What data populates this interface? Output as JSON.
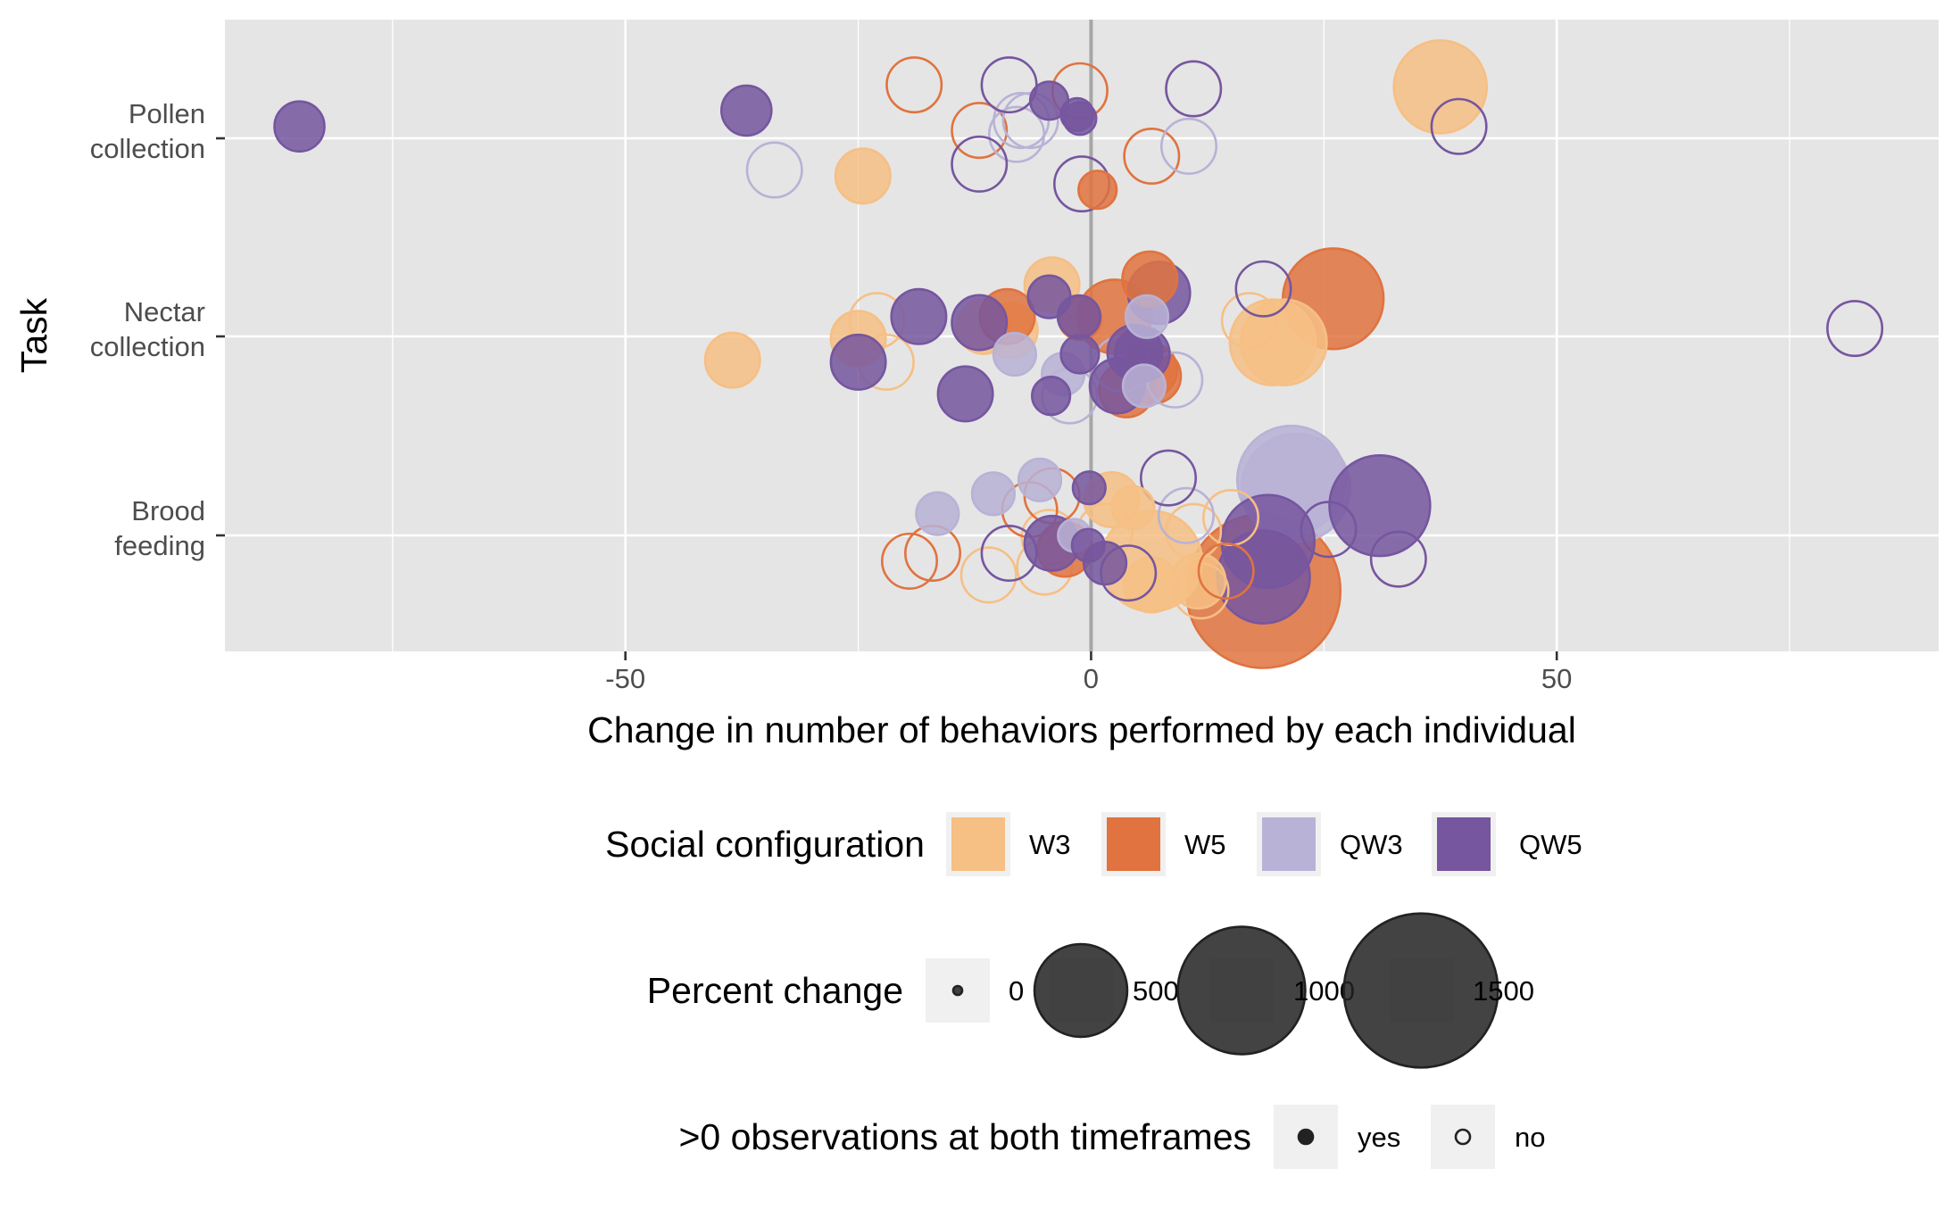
{
  "chart_data": {
    "type": "scatter",
    "xlabel": "Change in number of behaviors performed by each individual",
    "ylabel": "Task",
    "xlim": [
      -93,
      91
    ],
    "x_ticks": [
      -50,
      0,
      50
    ],
    "x_tick_labels": [
      "-50",
      "0",
      "50"
    ],
    "categories": [
      "Pollen\ncollection",
      "Nectar\ncollection",
      "Brood\nfeeding"
    ],
    "grid": true,
    "zero_line": true,
    "legend_position": "bottom",
    "colors": {
      "panel_bg": "#e5e5e5",
      "grid": "#ffffff",
      "zero_line": "#a6a6a6",
      "legend_key_bg": "#f0f0f0"
    },
    "legends": {
      "color": {
        "title": "Social configuration",
        "entries": [
          {
            "label": "W3",
            "color": "#f6bf84"
          },
          {
            "label": "W5",
            "color": "#e0733f"
          },
          {
            "label": "QW3",
            "color": "#b8b2d6"
          },
          {
            "label": "QW5",
            "color": "#75569f"
          }
        ]
      },
      "size": {
        "title": "Percent change",
        "entries": [
          {
            "label": "0",
            "value": 0
          },
          {
            "label": "500",
            "value": 500
          },
          {
            "label": "1000",
            "value": 1000
          },
          {
            "label": "1500",
            "value": 1500
          }
        ]
      },
      "fill": {
        "title": ">0 observations at both timeframes",
        "entries": [
          {
            "label": "yes",
            "filled": true
          },
          {
            "label": "no",
            "filled": false
          }
        ]
      }
    },
    "series": [
      {
        "name": "W3",
        "points": [
          {
            "task": "Pollen\ncollection",
            "x": 37.5,
            "y_offset": 0.26,
            "pct": 500,
            "filled": true
          },
          {
            "task": "Pollen\ncollection",
            "x": -24.5,
            "y_offset": -0.19,
            "pct": 150,
            "filled": true
          },
          {
            "task": "Nectar\ncollection",
            "x": -4.2,
            "y_offset": 0.26,
            "pct": 150,
            "filled": true
          },
          {
            "task": "Nectar\ncollection",
            "x": -23,
            "y_offset": 0.08,
            "pct": 150,
            "filled": false
          },
          {
            "task": "Nectar\ncollection",
            "x": -25,
            "y_offset": -0.01,
            "pct": 150,
            "filled": true
          },
          {
            "task": "Nectar\ncollection",
            "x": -11.5,
            "y_offset": 0.05,
            "pct": 150,
            "filled": true
          },
          {
            "task": "Nectar\ncollection",
            "x": -8.7,
            "y_offset": 0.03,
            "pct": 150,
            "filled": true
          },
          {
            "task": "Nectar\ncollection",
            "x": -38.5,
            "y_offset": -0.12,
            "pct": 150,
            "filled": true
          },
          {
            "task": "Nectar\ncollection",
            "x": -22,
            "y_offset": -0.13,
            "pct": 150,
            "filled": false
          },
          {
            "task": "Nectar\ncollection",
            "x": 17,
            "y_offset": 0.08,
            "pct": 150,
            "filled": false
          },
          {
            "task": "Nectar\ncollection",
            "x": 19.5,
            "y_offset": -0.03,
            "pct": 420,
            "filled": true
          },
          {
            "task": "Nectar\ncollection",
            "x": 20.7,
            "y_offset": -0.03,
            "pct": 420,
            "filled": true
          },
          {
            "task": "Brood\nfeeding",
            "x": 2.2,
            "y_offset": 0.18,
            "pct": 150,
            "filled": true
          },
          {
            "task": "Brood\nfeeding",
            "x": 4.5,
            "y_offset": 0.14,
            "pct": 80,
            "filled": true
          },
          {
            "task": "Brood\nfeeding",
            "x": 15,
            "y_offset": 0.09,
            "pct": 150,
            "filled": false
          },
          {
            "task": "Brood\nfeeding",
            "x": 1.5,
            "y_offset": 0.02,
            "pct": 150,
            "filled": false
          },
          {
            "task": "Brood\nfeeding",
            "x": 11,
            "y_offset": 0.02,
            "pct": 150,
            "filled": false
          },
          {
            "task": "Brood\nfeeding",
            "x": -4.5,
            "y_offset": -0.01,
            "pct": 150,
            "filled": false
          },
          {
            "task": "Brood\nfeeding",
            "x": 6.5,
            "y_offset": -0.13,
            "pct": 600,
            "filled": true
          },
          {
            "task": "Brood\nfeeding",
            "x": 6.5,
            "y_offset": -0.25,
            "pct": 150,
            "filled": true
          },
          {
            "task": "Brood\nfeeding",
            "x": -5,
            "y_offset": -0.16,
            "pct": 150,
            "filled": false
          },
          {
            "task": "Brood\nfeeding",
            "x": -11,
            "y_offset": -0.2,
            "pct": 150,
            "filled": false
          },
          {
            "task": "Brood\nfeeding",
            "x": 11.5,
            "y_offset": -0.23,
            "pct": 150,
            "filled": true
          },
          {
            "task": "Brood\nfeeding",
            "x": 11.8,
            "y_offset": -0.28,
            "pct": 150,
            "filled": false
          }
        ]
      },
      {
        "name": "W5",
        "points": [
          {
            "task": "Pollen\ncollection",
            "x": -19,
            "y_offset": 0.27,
            "pct": 150,
            "filled": false
          },
          {
            "task": "Pollen\ncollection",
            "x": -1.2,
            "y_offset": 0.24,
            "pct": 150,
            "filled": false
          },
          {
            "task": "Pollen\ncollection",
            "x": -12,
            "y_offset": 0.04,
            "pct": 150,
            "filled": false
          },
          {
            "task": "Pollen\ncollection",
            "x": 6.5,
            "y_offset": -0.09,
            "pct": 150,
            "filled": false
          },
          {
            "task": "Pollen\ncollection",
            "x": 0.7,
            "y_offset": -0.26,
            "pct": 60,
            "filled": true
          },
          {
            "task": "Nectar\ncollection",
            "x": 6.3,
            "y_offset": 0.29,
            "pct": 150,
            "filled": true
          },
          {
            "task": "Nectar\ncollection",
            "x": 26,
            "y_offset": 0.19,
            "pct": 600,
            "filled": true
          },
          {
            "task": "Nectar\ncollection",
            "x": 2.5,
            "y_offset": 0.1,
            "pct": 300,
            "filled": true
          },
          {
            "task": "Nectar\ncollection",
            "x": -9,
            "y_offset": 0.1,
            "pct": 150,
            "filled": true
          },
          {
            "task": "Nectar\ncollection",
            "x": -1.2,
            "y_offset": 0.09,
            "pct": 80,
            "filled": true
          },
          {
            "task": "Nectar\ncollection",
            "x": 6.3,
            "y_offset": -0.17,
            "pct": 150,
            "filled": true
          },
          {
            "task": "Nectar\ncollection",
            "x": 6.7,
            "y_offset": -0.2,
            "pct": 150,
            "filled": true
          },
          {
            "task": "Nectar\ncollection",
            "x": 3.8,
            "y_offset": -0.27,
            "pct": 150,
            "filled": true
          },
          {
            "task": "Brood\nfeeding",
            "x": -4.2,
            "y_offset": 0.2,
            "pct": 150,
            "filled": false
          },
          {
            "task": "Brood\nfeeding",
            "x": -6.6,
            "y_offset": 0.13,
            "pct": 150,
            "filled": false
          },
          {
            "task": "Brood\nfeeding",
            "x": -2.8,
            "y_offset": -0.07,
            "pct": 150,
            "filled": true
          },
          {
            "task": "Brood\nfeeding",
            "x": -17,
            "y_offset": -0.09,
            "pct": 150,
            "filled": false
          },
          {
            "task": "Brood\nfeeding",
            "x": -19.5,
            "y_offset": -0.13,
            "pct": 150,
            "filled": false
          },
          {
            "task": "Brood\nfeeding",
            "x": 14.5,
            "y_offset": -0.18,
            "pct": 150,
            "filled": false
          },
          {
            "task": "Brood\nfeeding",
            "x": 18.5,
            "y_offset": -0.28,
            "pct": 1500,
            "filled": true
          }
        ]
      },
      {
        "name": "QW3",
        "points": [
          {
            "task": "Pollen\ncollection",
            "x": -7.5,
            "y_offset": 0.09,
            "pct": 150,
            "filled": false
          },
          {
            "task": "Pollen\ncollection",
            "x": -6.5,
            "y_offset": 0.09,
            "pct": 150,
            "filled": false
          },
          {
            "task": "Pollen\ncollection",
            "x": -8,
            "y_offset": 0.02,
            "pct": 150,
            "filled": false
          },
          {
            "task": "Pollen\ncollection",
            "x": 10.5,
            "y_offset": -0.04,
            "pct": 150,
            "filled": false
          },
          {
            "task": "Pollen\ncollection",
            "x": -34,
            "y_offset": -0.16,
            "pct": 150,
            "filled": false
          },
          {
            "task": "Nectar\ncollection",
            "x": 6,
            "y_offset": 0.1,
            "pct": 80,
            "filled": true
          },
          {
            "task": "Nectar\ncollection",
            "x": -8.2,
            "y_offset": -0.09,
            "pct": 80,
            "filled": true
          },
          {
            "task": "Nectar\ncollection",
            "x": 3.2,
            "y_offset": -0.14,
            "pct": 150,
            "filled": false
          },
          {
            "task": "Nectar\ncollection",
            "x": -3,
            "y_offset": -0.19,
            "pct": 80,
            "filled": true
          },
          {
            "task": "Nectar\ncollection",
            "x": 9,
            "y_offset": -0.22,
            "pct": 150,
            "filled": false
          },
          {
            "task": "Nectar\ncollection",
            "x": 5.7,
            "y_offset": -0.25,
            "pct": 80,
            "filled": true
          },
          {
            "task": "Nectar\ncollection",
            "x": -2.3,
            "y_offset": -0.3,
            "pct": 150,
            "filled": false
          },
          {
            "task": "Brood\nfeeding",
            "x": -5.5,
            "y_offset": 0.28,
            "pct": 80,
            "filled": true
          },
          {
            "task": "Brood\nfeeding",
            "x": -10.5,
            "y_offset": 0.21,
            "pct": 80,
            "filled": true
          },
          {
            "task": "Brood\nfeeding",
            "x": -16.5,
            "y_offset": 0.11,
            "pct": 80,
            "filled": true
          },
          {
            "task": "Brood\nfeeding",
            "x": 10.2,
            "y_offset": 0.1,
            "pct": 150,
            "filled": false
          },
          {
            "task": "Brood\nfeeding",
            "x": 21.5,
            "y_offset": 0.28,
            "pct": 700,
            "filled": true
          },
          {
            "task": "Brood\nfeeding",
            "x": 22,
            "y_offset": 0.24,
            "pct": 700,
            "filled": true
          },
          {
            "task": "Brood\nfeeding",
            "x": -1.8,
            "y_offset": 0.0,
            "pct": 40,
            "filled": true
          }
        ]
      },
      {
        "name": "QW5",
        "points": [
          {
            "task": "Pollen\ncollection",
            "x": -85,
            "y_offset": 0.06,
            "pct": 120,
            "filled": true
          },
          {
            "task": "Pollen\ncollection",
            "x": -37,
            "y_offset": 0.14,
            "pct": 120,
            "filled": true
          },
          {
            "task": "Pollen\ncollection",
            "x": -8.8,
            "y_offset": 0.27,
            "pct": 150,
            "filled": false
          },
          {
            "task": "Pollen\ncollection",
            "x": -4.5,
            "y_offset": 0.19,
            "pct": 60,
            "filled": true
          },
          {
            "task": "Pollen\ncollection",
            "x": -1.5,
            "y_offset": 0.12,
            "pct": 40,
            "filled": true
          },
          {
            "task": "Pollen\ncollection",
            "x": -1.2,
            "y_offset": 0.1,
            "pct": 40,
            "filled": true
          },
          {
            "task": "Pollen\ncollection",
            "x": 11,
            "y_offset": 0.25,
            "pct": 150,
            "filled": false
          },
          {
            "task": "Pollen\ncollection",
            "x": 39.5,
            "y_offset": 0.06,
            "pct": 150,
            "filled": false
          },
          {
            "task": "Pollen\ncollection",
            "x": -12,
            "y_offset": -0.13,
            "pct": 150,
            "filled": false
          },
          {
            "task": "Pollen\ncollection",
            "x": -1,
            "y_offset": -0.23,
            "pct": 150,
            "filled": false
          },
          {
            "task": "Nectar\ncollection",
            "x": 7.3,
            "y_offset": 0.22,
            "pct": 200,
            "filled": true
          },
          {
            "task": "Nectar\ncollection",
            "x": -4.5,
            "y_offset": 0.2,
            "pct": 80,
            "filled": true
          },
          {
            "task": "Nectar\ncollection",
            "x": 18.5,
            "y_offset": 0.24,
            "pct": 150,
            "filled": false
          },
          {
            "task": "Nectar\ncollection",
            "x": -18.5,
            "y_offset": 0.1,
            "pct": 150,
            "filled": true
          },
          {
            "task": "Nectar\ncollection",
            "x": -12,
            "y_offset": 0.07,
            "pct": 150,
            "filled": true
          },
          {
            "task": "Nectar\ncollection",
            "x": -1.3,
            "y_offset": 0.1,
            "pct": 80,
            "filled": true
          },
          {
            "task": "Nectar\ncollection",
            "x": 82,
            "y_offset": 0.04,
            "pct": 150,
            "filled": false
          },
          {
            "task": "Nectar\ncollection",
            "x": 4.7,
            "y_offset": -0.08,
            "pct": 150,
            "filled": true
          },
          {
            "task": "Nectar\ncollection",
            "x": 5.5,
            "y_offset": -0.09,
            "pct": 150,
            "filled": true
          },
          {
            "task": "Nectar\ncollection",
            "x": -1.2,
            "y_offset": -0.09,
            "pct": 60,
            "filled": true
          },
          {
            "task": "Nectar\ncollection",
            "x": -25,
            "y_offset": -0.13,
            "pct": 150,
            "filled": true
          },
          {
            "task": "Nectar\ncollection",
            "x": 2.8,
            "y_offset": -0.25,
            "pct": 150,
            "filled": true
          },
          {
            "task": "Nectar\ncollection",
            "x": -13.5,
            "y_offset": -0.29,
            "pct": 150,
            "filled": true
          },
          {
            "task": "Nectar\ncollection",
            "x": -4.3,
            "y_offset": -0.3,
            "pct": 60,
            "filled": true
          },
          {
            "task": "Brood\nfeeding",
            "x": 8.3,
            "y_offset": 0.29,
            "pct": 150,
            "filled": false
          },
          {
            "task": "Brood\nfeeding",
            "x": -0.2,
            "y_offset": 0.24,
            "pct": 40,
            "filled": true
          },
          {
            "task": "Brood\nfeeding",
            "x": 31,
            "y_offset": 0.15,
            "pct": 600,
            "filled": true
          },
          {
            "task": "Brood\nfeeding",
            "x": 25.5,
            "y_offset": 0.03,
            "pct": 150,
            "filled": false
          },
          {
            "task": "Brood\nfeeding",
            "x": 19,
            "y_offset": -0.03,
            "pct": 500,
            "filled": true
          },
          {
            "task": "Brood\nfeeding",
            "x": -4.2,
            "y_offset": -0.04,
            "pct": 150,
            "filled": true
          },
          {
            "task": "Brood\nfeeding",
            "x": -0.3,
            "y_offset": -0.05,
            "pct": 40,
            "filled": true
          },
          {
            "task": "Brood\nfeeding",
            "x": -8.8,
            "y_offset": -0.09,
            "pct": 150,
            "filled": false
          },
          {
            "task": "Brood\nfeeding",
            "x": 1.5,
            "y_offset": -0.14,
            "pct": 80,
            "filled": true
          },
          {
            "task": "Brood\nfeeding",
            "x": 33,
            "y_offset": -0.12,
            "pct": 150,
            "filled": false
          },
          {
            "task": "Brood\nfeeding",
            "x": 4,
            "y_offset": -0.19,
            "pct": 150,
            "filled": false
          },
          {
            "task": "Brood\nfeeding",
            "x": 18.5,
            "y_offset": -0.21,
            "pct": 500,
            "filled": true
          }
        ]
      }
    ]
  }
}
